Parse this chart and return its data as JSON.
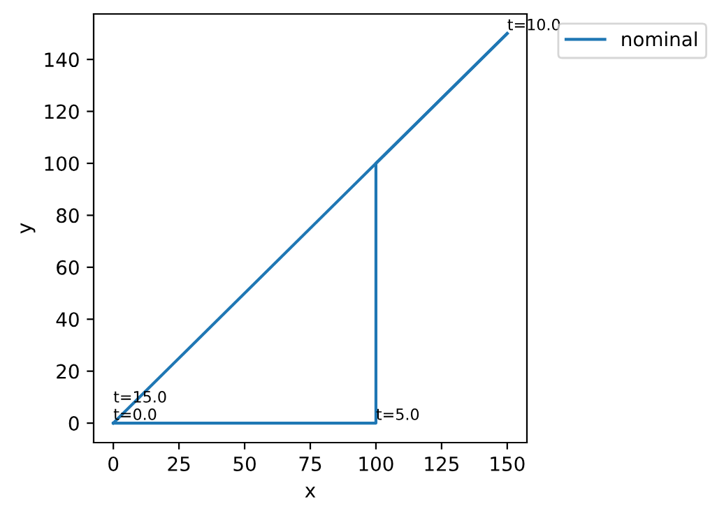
{
  "chart_data": {
    "type": "line",
    "xlabel": "x",
    "ylabel": "y",
    "series": [
      {
        "name": "nominal",
        "color": "#1f77b4",
        "x": [
          0,
          100,
          100,
          150
        ],
        "values": [
          0,
          0,
          100,
          150
        ]
      },
      {
        "color": "#1f77b4",
        "x": [
          0,
          150
        ],
        "values": [
          0,
          150
        ]
      }
    ],
    "annotations": [
      {
        "text": "t=0.0",
        "x": 0,
        "y": 0
      },
      {
        "text": "t=5.0",
        "x": 100,
        "y": 0
      },
      {
        "text": "t=10.0",
        "x": 150,
        "y": 150
      },
      {
        "text": "t=15.0",
        "x": 0,
        "y": 0
      }
    ],
    "xlim": [
      -7.5,
      157.5
    ],
    "ylim": [
      -7.5,
      157.5
    ],
    "xticks": [
      0,
      25,
      50,
      75,
      100,
      125,
      150
    ],
    "yticks": [
      0,
      20,
      40,
      60,
      80,
      100,
      120,
      140
    ],
    "legend": "top right",
    "grid": false
  }
}
